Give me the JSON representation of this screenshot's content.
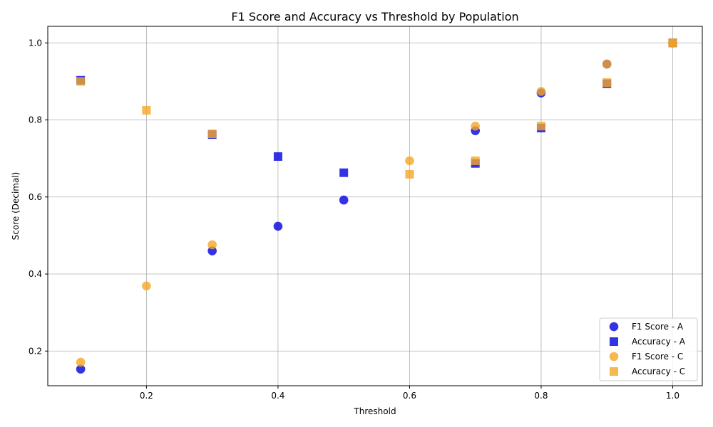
{
  "chart_data": {
    "type": "scatter",
    "title": "F1 Score and Accuracy vs Threshold by Population",
    "xlabel": "Threshold",
    "ylabel": "Score (Decimal)",
    "xlim": [
      0.05,
      1.045
    ],
    "ylim": [
      0.11,
      1.043
    ],
    "xticks": [
      0.2,
      0.4,
      0.6,
      0.8,
      1.0
    ],
    "xtick_labels": [
      "0.2",
      "0.4",
      "0.6",
      "0.8",
      "1.0"
    ],
    "yticks": [
      0.2,
      0.4,
      0.6,
      0.8,
      1.0
    ],
    "ytick_labels": [
      "0.2",
      "0.4",
      "0.6",
      "0.8",
      "1.0"
    ],
    "grid": true,
    "legend_position": "lower-right",
    "series": [
      {
        "name": "F1 Score - A",
        "marker": "circle",
        "color": "#0000dd",
        "x": [
          0.1,
          0.3,
          0.4,
          0.5,
          0.7,
          0.8,
          0.9,
          1.0
        ],
        "y": [
          0.153,
          0.46,
          0.524,
          0.592,
          0.772,
          0.87,
          0.945,
          1.0
        ]
      },
      {
        "name": "Accuracy - A",
        "marker": "square",
        "color": "#0000dd",
        "x": [
          0.1,
          0.3,
          0.4,
          0.5,
          0.7,
          0.8,
          0.9,
          1.0
        ],
        "y": [
          0.903,
          0.762,
          0.705,
          0.663,
          0.687,
          0.779,
          0.894,
          1.0
        ]
      },
      {
        "name": "F1 Score - C",
        "marker": "circle",
        "color": "#f5a623",
        "x": [
          0.1,
          0.2,
          0.3,
          0.6,
          0.7,
          0.8,
          0.9,
          1.0
        ],
        "y": [
          0.171,
          0.369,
          0.476,
          0.694,
          0.784,
          0.874,
          0.945,
          1.0
        ]
      },
      {
        "name": "Accuracy - C",
        "marker": "square",
        "color": "#f5a623",
        "x": [
          0.1,
          0.2,
          0.3,
          0.6,
          0.7,
          0.8,
          0.9,
          1.0
        ],
        "y": [
          0.9,
          0.825,
          0.764,
          0.659,
          0.694,
          0.784,
          0.897,
          1.0
        ]
      }
    ]
  }
}
